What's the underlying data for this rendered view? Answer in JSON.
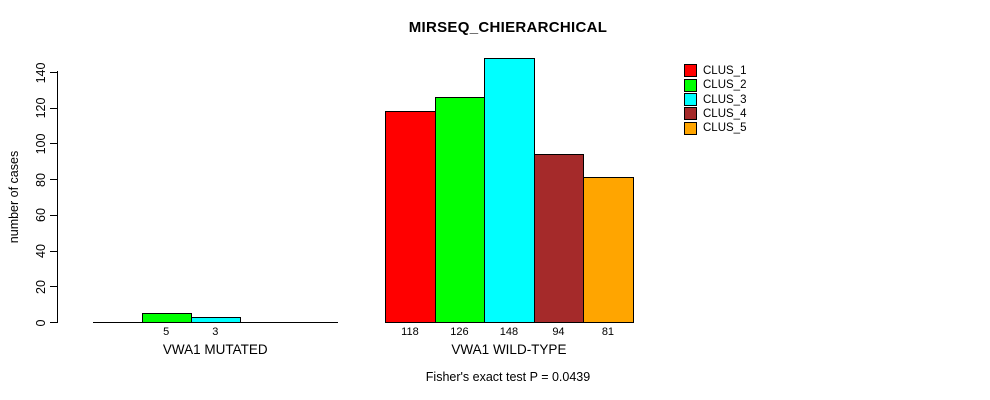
{
  "title": "MIRSEQ_CHIERARCHICAL",
  "footer": "Fisher's exact test P = 0.0439",
  "chart_data": {
    "type": "bar",
    "title": "MIRSEQ_CHIERARCHICAL",
    "ylabel": "number of cases",
    "xlabel": "",
    "ylim": [
      0,
      140
    ],
    "y_ticks": [
      0,
      20,
      40,
      60,
      80,
      100,
      120,
      140
    ],
    "y_tick_label_rotation": 90,
    "grid": false,
    "legend_position": "right-outside",
    "categories": [
      "VWA1 MUTATED",
      "VWA1 WILD-TYPE"
    ],
    "series": [
      {
        "name": "CLUS_1",
        "color": "#ff0000",
        "values": [
          0,
          118
        ]
      },
      {
        "name": "CLUS_2",
        "color": "#00ff00",
        "values": [
          5,
          126
        ]
      },
      {
        "name": "CLUS_3",
        "color": "#00ffff",
        "values": [
          3,
          148
        ]
      },
      {
        "name": "CLUS_4",
        "color": "#a52a2a",
        "values": [
          0,
          94
        ]
      },
      {
        "name": "CLUS_5",
        "color": "#ffa500",
        "values": [
          0,
          81
        ]
      }
    ],
    "visible_bar_value_labels": {
      "VWA1 MUTATED": [
        "5",
        "3"
      ],
      "VWA1 WILD-TYPE": [
        "118",
        "126",
        "148",
        "94",
        "81"
      ]
    },
    "bar_border_color": "#000000",
    "annotation": "Fisher's exact test P = 0.0439"
  }
}
